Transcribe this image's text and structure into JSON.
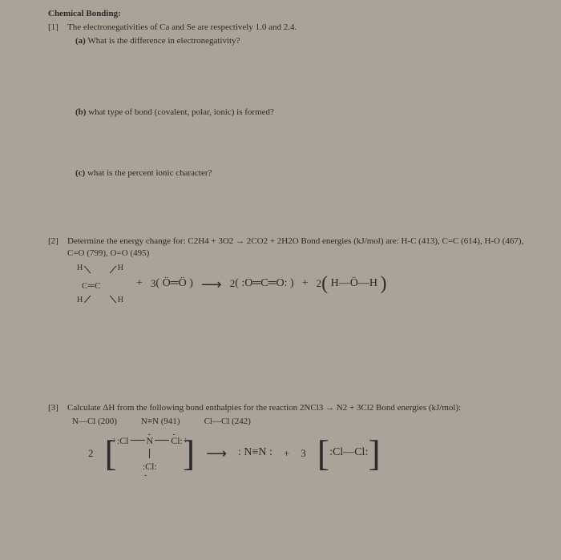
{
  "heading": "Chemical Bonding:",
  "q1": {
    "num": "[1]",
    "text": "The electronegativities of Ca and Se are respectively 1.0 and 2.4.",
    "a": {
      "label": "(a)",
      "text": "What is the difference in electronegativity?"
    },
    "b": {
      "label": "(b)",
      "text": "what type of bond (covalent, polar, ionic) is formed?"
    },
    "c": {
      "label": "(c)",
      "text": "what is the percent ionic character?"
    }
  },
  "q2": {
    "num": "[2]",
    "text": "Determine the energy change for:  C2H4 + 3O2 → 2CO2 + 2H2O   Bond energies (kJ/mol) are: H-C (413), C=C (614), H-O (467), C=O (799), O=O (495)",
    "struct": {
      "h": "H",
      "cc": "C═C"
    },
    "plus1": "+",
    "o2_coef": "3",
    "o2": "( Ö═Ö )",
    "arrow": "⟶",
    "co2_coef": "2",
    "co2": "( :O═C═O: )",
    "plus2": "+",
    "h2o_coef": "2",
    "h2o_open": "(",
    "h2o": " H—Ö—H ",
    "h2o_close": ")"
  },
  "q3": {
    "num": "[3]",
    "text": "Calculate ΔH from the following bond enthalpies for the reaction  2NCl3 → N2 + 3Cl2   Bond energies (kJ/mol):",
    "bonds": {
      "ncl": "N—Cl  (200)",
      "nn": "N≡N  (941)",
      "clcl": "Cl—Cl  (242)"
    },
    "coef_l": "2",
    "reactant": {
      "cl": "Cl",
      "n": "N"
    },
    "arrow": "⟶",
    "n2": ": N≡N :",
    "plus": "+",
    "coef_r": "3",
    "cl2_open": "[",
    "cl2": " :Cl—Cl: ",
    "cl2_close": "]"
  }
}
